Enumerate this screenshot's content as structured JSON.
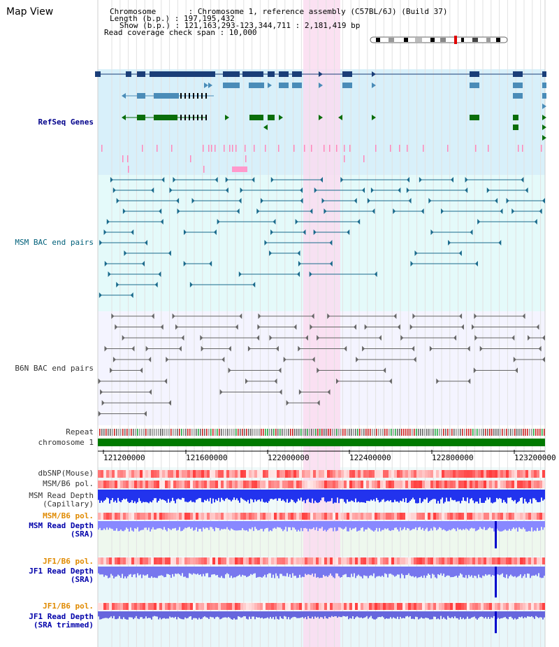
{
  "title": "Map View",
  "header": {
    "chromosome_line": "Chromosome       : Chromosome 1, reference assembly (C57BL/6J) (Build 37)",
    "length_line": "Length (b.p.) : 197,195,432",
    "show_line": "Show (b.p.) : 121,163,293-123,344,711 : 2,181,419 bp",
    "coverage_line": "Read coverage check span : 10,000"
  },
  "tracks": {
    "refseq": "RefSeq Genes",
    "msm_bac": "MSM BAC end pairs",
    "b6n_bac": "B6N BAC end pairs",
    "repeat": "Repeat",
    "chromosome": "chromosome 1",
    "dbsnp": "dbSNP(Mouse)",
    "msm_b6_pol_1": "MSM/B6 pol.",
    "msm_depth_cap_1": "MSM Read Depth",
    "msm_depth_cap_2": "(Capillary)",
    "msm_b6_pol_2": "MSM/B6 pol.",
    "msm_depth_sra_1": "MSM Read Depth",
    "msm_depth_sra_2": "(SRA)",
    "jf1_b6_pol_1": "JF1/B6 pol.",
    "jf1_depth_sra_1": "JF1 Read Depth",
    "jf1_depth_sra_2": "(SRA)",
    "jf1_b6_pol_2": "JF1/B6 pol.",
    "jf1_depth_trim_1": "JF1 Read Depth",
    "jf1_depth_trim_2": "(SRA trimmed)"
  },
  "axis": {
    "ticks": [
      "121200000",
      "121600000",
      "122000000",
      "122400000",
      "122800000",
      "123200000"
    ]
  },
  "colors": {
    "refseq_bg": "#d8f0fa",
    "msm_bg": "#e4fafa",
    "b6n_bg": "#f4f4ff",
    "highlight": "#fadcf0",
    "chromosome": "#007a00",
    "gene_navy": "#1a3e78",
    "gene_steel": "#4a8cb8",
    "gene_green": "#0a6e0a"
  }
}
